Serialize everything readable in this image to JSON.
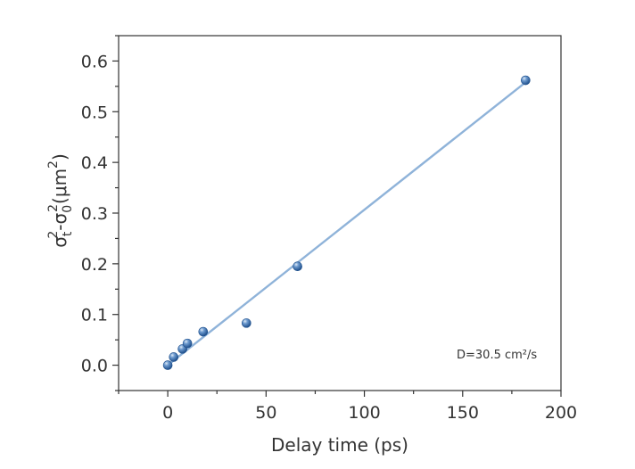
{
  "chart_data": {
    "type": "scatter",
    "title": "",
    "xlabel": "Delay time (ps)",
    "ylabel": {
      "sym1": "σ",
      "sub1": "t",
      "sup1": "2",
      "dash": "-",
      "sym2": "σ",
      "sub2": "0",
      "sup2": "2",
      "open": "(μm",
      "sup3": "2",
      "close": ")"
    },
    "xlim": [
      -25,
      200
    ],
    "ylim": [
      -0.05,
      0.65
    ],
    "xticks": [
      "0",
      "50",
      "100",
      "150",
      "200"
    ],
    "xtick_values": [
      0,
      50,
      100,
      150,
      200
    ],
    "yticks": [
      "0.0",
      "0.1",
      "0.2",
      "0.3",
      "0.4",
      "0.5",
      "0.6"
    ],
    "ytick_values": [
      0.0,
      0.1,
      0.2,
      0.3,
      0.4,
      0.5,
      0.6
    ],
    "grid": false,
    "series": [
      {
        "points": [
          {
            "x": 0,
            "y": 0.0
          },
          {
            "x": 3,
            "y": 0.016
          },
          {
            "x": 7.5,
            "y": 0.032
          },
          {
            "x": 10,
            "y": 0.043
          },
          {
            "x": 18,
            "y": 0.066
          },
          {
            "x": 40,
            "y": 0.083
          },
          {
            "x": 66,
            "y": 0.195
          },
          {
            "x": 182,
            "y": 0.562
          }
        ],
        "color": "#3d6fa8"
      }
    ],
    "fit_line": {
      "x": [
        0,
        182
      ],
      "y": [
        0.0,
        0.558
      ],
      "color": "#8fb3d9"
    },
    "annotation": {
      "text": "D=30.5 cm²/s"
    }
  }
}
